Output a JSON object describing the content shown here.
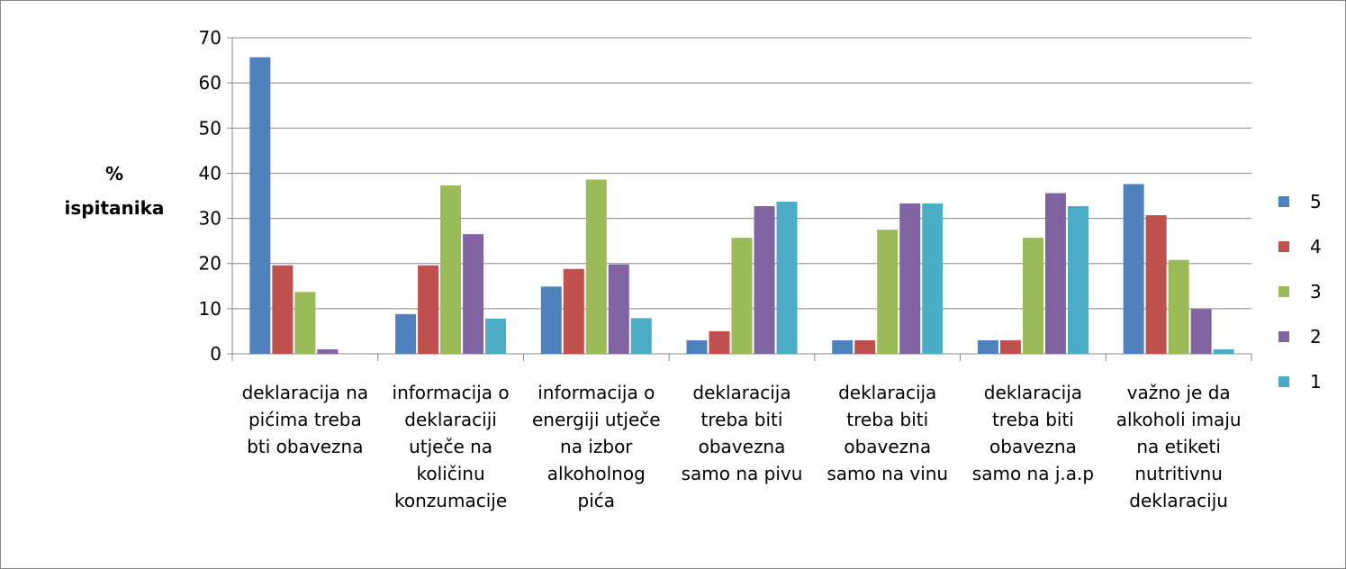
{
  "chart_data": {
    "type": "bar",
    "y_label": "% ispitanika",
    "categories": [
      "deklaracija na pićima treba bti obavezna",
      "informacija o deklaraciji utječe na količinu konzumacije",
      "informacija o energiji utječe na izbor alkoholnog pića",
      "deklaracija treba biti obavezna samo na pivu",
      "deklaracija treba biti obavezna samo na vinu",
      "deklaracija treba biti obavezna samo na j.a.p",
      "važno je da alkoholi imaju na etiketi nutritivnu deklaraciju"
    ],
    "series": [
      {
        "name": "5",
        "color": "#4f81bd",
        "values": [
          65.7,
          8.8,
          14.9,
          3,
          3,
          3,
          37.6
        ]
      },
      {
        "name": "4",
        "color": "#c0504d",
        "values": [
          19.6,
          19.6,
          18.8,
          5,
          3,
          3,
          30.7
        ]
      },
      {
        "name": "3",
        "color": "#9bbb59",
        "values": [
          13.7,
          37.3,
          38.6,
          25.7,
          27.5,
          25.7,
          20.8
        ]
      },
      {
        "name": "2",
        "color": "#8064a2",
        "values": [
          1,
          26.5,
          19.8,
          32.7,
          33.3,
          35.6,
          9.9
        ]
      },
      {
        "name": "1",
        "color": "#4bacc6",
        "values": [
          0,
          7.8,
          7.9,
          33.7,
          33.3,
          32.7,
          1
        ]
      }
    ],
    "ylim": [
      0,
      70
    ],
    "yticks": [
      0,
      10,
      20,
      30,
      40,
      50,
      60,
      70
    ],
    "grid": true,
    "legend": "right"
  }
}
